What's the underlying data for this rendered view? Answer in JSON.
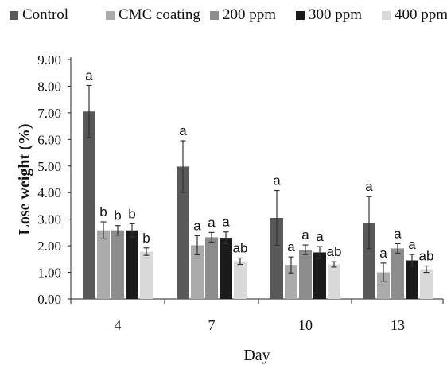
{
  "chart_data": {
    "type": "bar",
    "title": "",
    "xlabel": "Day",
    "ylabel": "Lose weight (%)",
    "ylim": [
      0,
      9
    ],
    "yticks": [
      "0.00",
      "1.00",
      "2.00",
      "3.00",
      "4.00",
      "5.00",
      "6.00",
      "7.00",
      "8.00",
      "9.00"
    ],
    "categories": [
      "4",
      "7",
      "10",
      "13"
    ],
    "legend_position": "top",
    "grid": false,
    "series": [
      {
        "name": "Control",
        "color": "#595959",
        "values": [
          7.05,
          4.98,
          3.05,
          2.87
        ],
        "errors": [
          0.98,
          0.97,
          1.03,
          0.98
        ],
        "labels": [
          "a",
          "a",
          "a",
          "a"
        ]
      },
      {
        "name": "CMC coating",
        "color": "#aaaaaa",
        "values": [
          2.58,
          2.02,
          1.28,
          1.0
        ],
        "errors": [
          0.32,
          0.36,
          0.3,
          0.35
        ],
        "labels": [
          "b",
          "a",
          "a",
          "a"
        ]
      },
      {
        "name": "200 ppm",
        "color": "#8c8c8c",
        "values": [
          2.58,
          2.32,
          1.85,
          1.9
        ],
        "errors": [
          0.18,
          0.18,
          0.18,
          0.18
        ],
        "labels": [
          "b",
          "a",
          "a",
          "a"
        ]
      },
      {
        "name": "300 ppm",
        "color": "#1a1a1a",
        "values": [
          2.58,
          2.3,
          1.75,
          1.45
        ],
        "errors": [
          0.25,
          0.22,
          0.22,
          0.22
        ],
        "labels": [
          "b",
          "a",
          "a",
          "a"
        ]
      },
      {
        "name": "400 ppm",
        "color": "#d9d9d9",
        "values": [
          1.78,
          1.42,
          1.3,
          1.12
        ],
        "errors": [
          0.14,
          0.12,
          0.1,
          0.12
        ],
        "labels": [
          "b",
          "ab",
          "ab",
          "ab"
        ]
      }
    ]
  }
}
